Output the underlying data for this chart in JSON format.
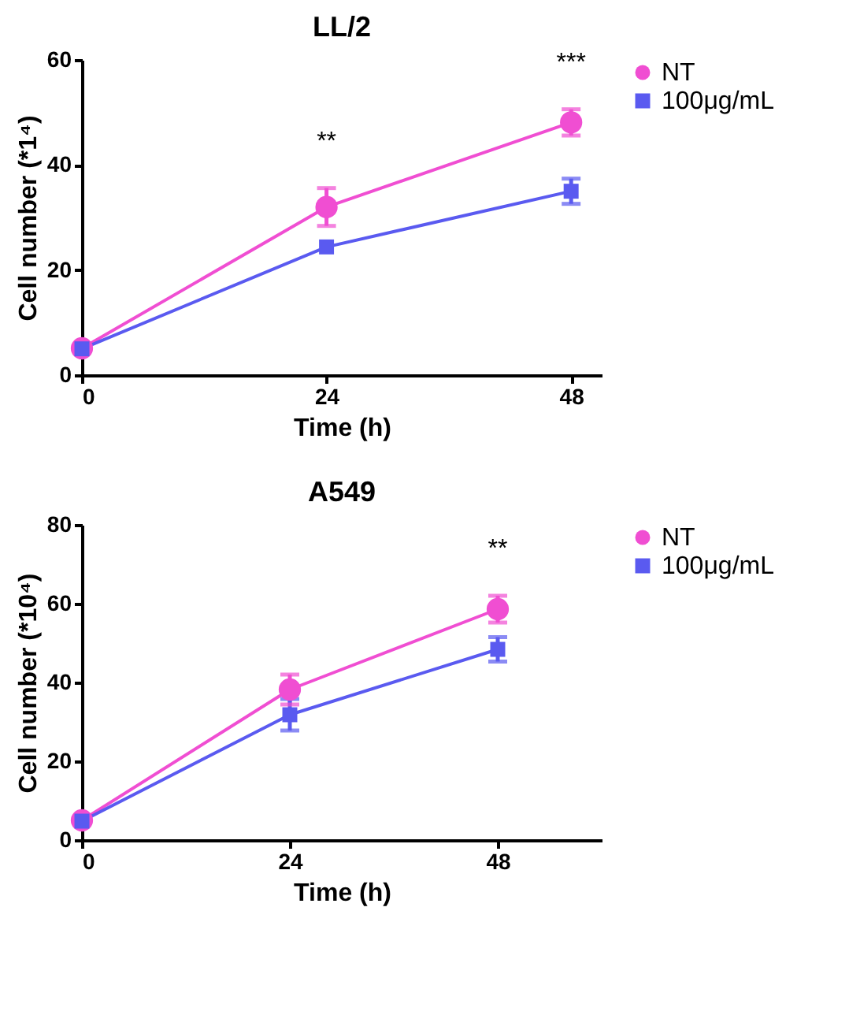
{
  "chart_data": [
    {
      "type": "line",
      "title": "LL/2",
      "xlabel": "Time (h)",
      "ylabel": "Cell number (*1⁴)",
      "x": [
        0,
        24,
        48
      ],
      "xlim": [
        0,
        51
      ],
      "xticks": [
        0,
        24,
        48
      ],
      "ylim": [
        0,
        60
      ],
      "yticks": [
        0,
        20,
        40,
        60
      ],
      "grid": false,
      "legend": "right",
      "series": [
        {
          "name": "NT",
          "color": "#f04ed2",
          "marker": "circle",
          "values": [
            5.1,
            32.0,
            48.1
          ],
          "errors": [
            null,
            3.6,
            2.5
          ]
        },
        {
          "name": "100μg/mL",
          "color": "#5a5af0",
          "marker": "square",
          "values": [
            5.0,
            24.4,
            35.0
          ],
          "errors": [
            null,
            null,
            2.4
          ]
        }
      ],
      "annotations": [
        "**",
        "***"
      ]
    },
    {
      "type": "line",
      "title": "A549",
      "xlabel": "Time (h)",
      "ylabel": "Cell number (*10⁴)",
      "x": [
        0,
        24,
        48
      ],
      "xlim": [
        0,
        60
      ],
      "xticks": [
        0,
        24,
        48
      ],
      "ylim": [
        0,
        80
      ],
      "yticks": [
        0,
        20,
        40,
        60,
        80
      ],
      "grid": false,
      "legend": "right",
      "series": [
        {
          "name": "NT",
          "color": "#f04ed2",
          "marker": "circle",
          "values": [
            5.0,
            38.2,
            58.6
          ],
          "errors": [
            null,
            3.8,
            3.4
          ]
        },
        {
          "name": "100μg/mL",
          "color": "#5a5af0",
          "marker": "square",
          "values": [
            4.8,
            31.8,
            48.4
          ],
          "errors": [
            null,
            4.0,
            3.1
          ]
        }
      ],
      "annotations": [
        "**"
      ]
    }
  ]
}
